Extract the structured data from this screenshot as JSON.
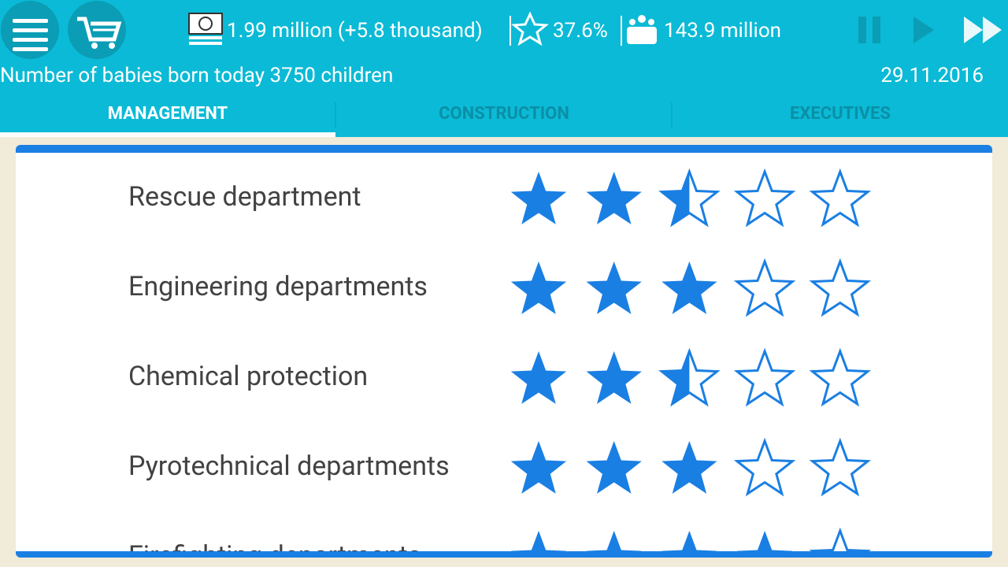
{
  "header": {
    "money": "1.99 million (+5.8 thousand)",
    "approval": "37.6%",
    "population": "143.9 million",
    "news": "Number of babies born today 3750 children",
    "date": "29.11.2016"
  },
  "tabs": [
    "MANAGEMENT",
    "CONSTRUCTION",
    "EXECUTIVES"
  ],
  "departments": [
    {
      "label": "Rescue department",
      "rating": 2.5
    },
    {
      "label": "Engineering departments",
      "rating": 3
    },
    {
      "label": "Chemical protection",
      "rating": 2.5
    },
    {
      "label": "Pyrotechnical departments",
      "rating": 3
    },
    {
      "label": "Firefighting departments",
      "rating": 4
    }
  ]
}
